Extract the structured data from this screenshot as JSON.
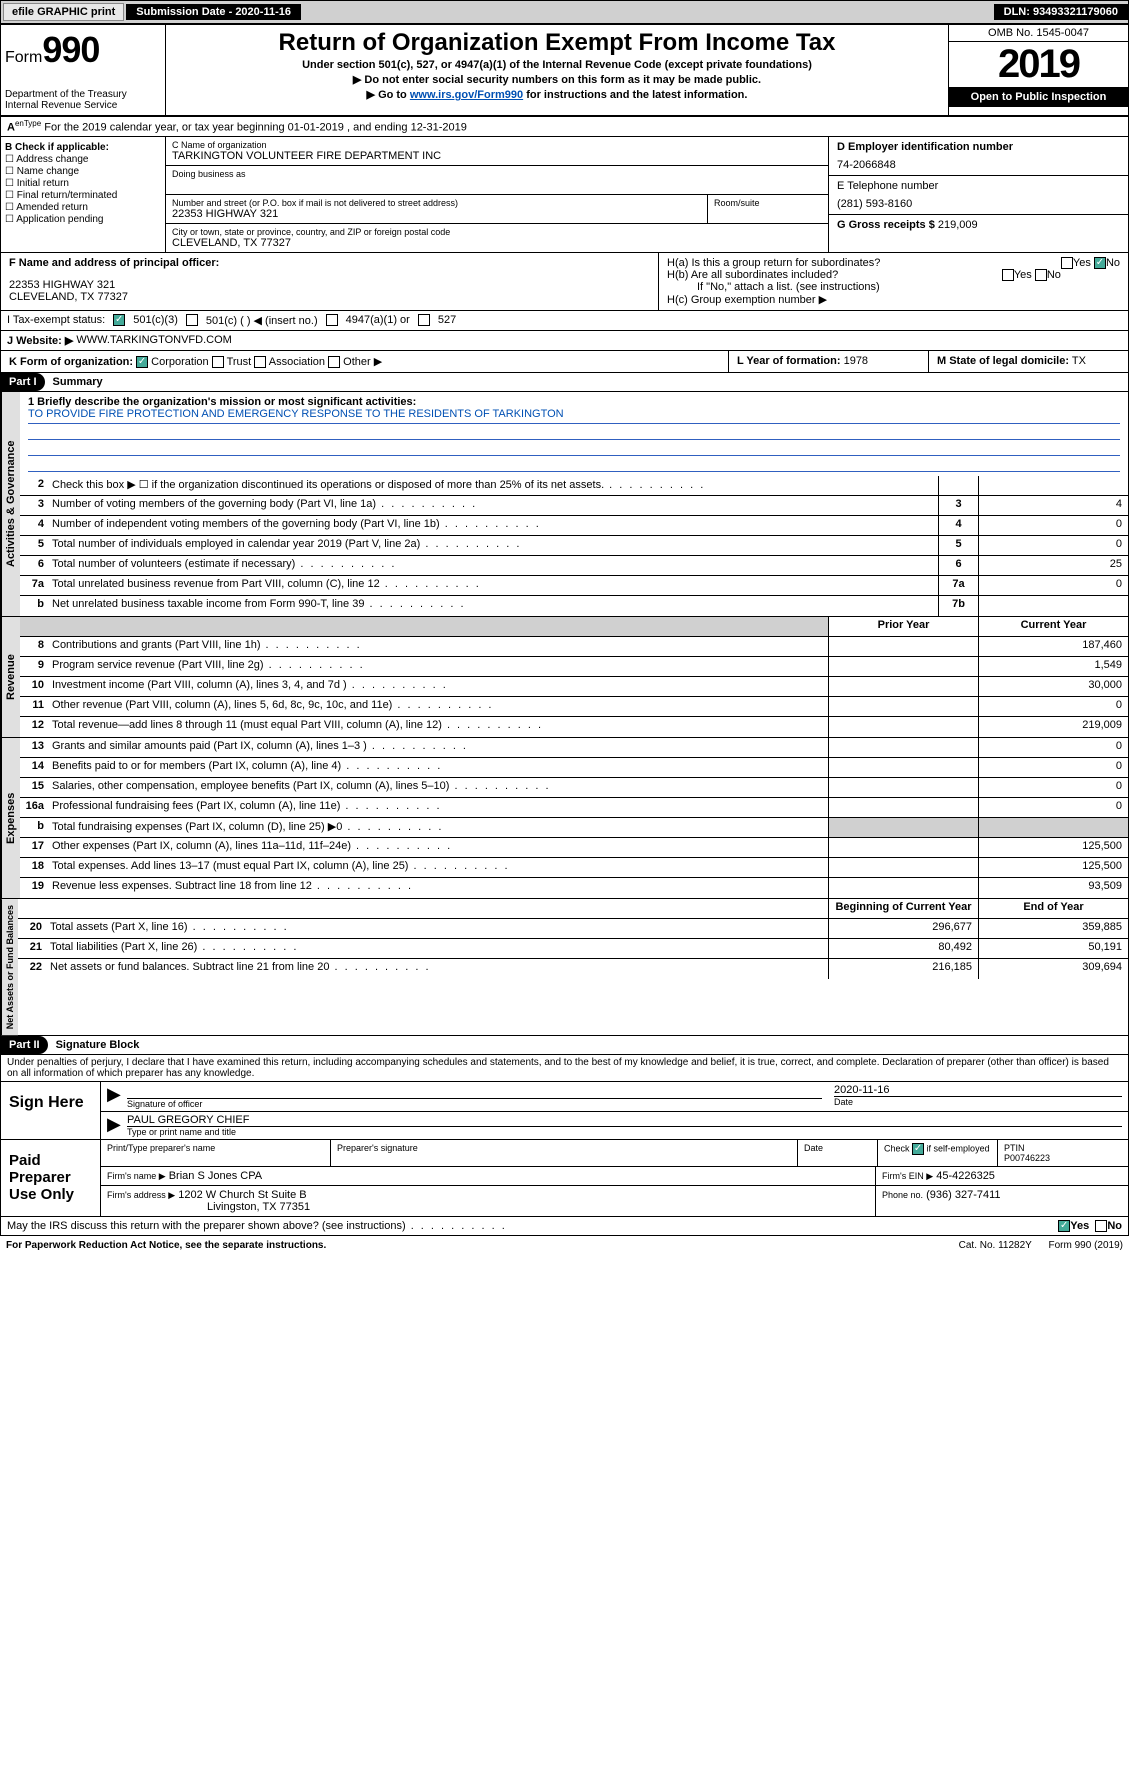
{
  "topbar": {
    "efile": "efile GRAPHIC print",
    "sub_label": "Submission Date - 2020-11-16",
    "dln": "DLN: 93493321179060"
  },
  "header": {
    "form_prefix": "Form",
    "form_num": "990",
    "dept": "Department of the Treasury\nInternal Revenue Service",
    "title": "Return of Organization Exempt From Income Tax",
    "sub1": "Under section 501(c), 527, or 4947(a)(1) of the Internal Revenue Code (except private foundations)",
    "sub2": "Do not enter social security numbers on this form as it may be made public.",
    "sub3_pre": "Go to ",
    "sub3_link": "www.irs.gov/Form990",
    "sub3_post": " for instructions and the latest information.",
    "omb": "OMB No. 1545-0047",
    "year": "2019",
    "open": "Open to Public Inspection"
  },
  "section_a": "For the 2019 calendar year, or tax year beginning 01-01-2019   , and ending 12-31-2019",
  "box_b": {
    "hdr": "B Check if applicable:",
    "items": [
      "Address change",
      "Name change",
      "Initial return",
      "Final return/terminated",
      "Amended return",
      "Application pending"
    ]
  },
  "box_c": {
    "name_label": "C Name of organization",
    "name": "TARKINGTON VOLUNTEER FIRE DEPARTMENT INC",
    "dba_label": "Doing business as",
    "addr_label": "Number and street (or P.O. box if mail is not delivered to street address)",
    "room_label": "Room/suite",
    "addr": "22353 HIGHWAY 321",
    "city_label": "City or town, state or province, country, and ZIP or foreign postal code",
    "city": "CLEVELAND, TX  77327"
  },
  "box_d": {
    "label": "D Employer identification number",
    "val": "74-2066848"
  },
  "box_e": {
    "label": "E Telephone number",
    "val": "(281) 593-8160"
  },
  "box_g": {
    "label": "G Gross receipts $",
    "val": "219,009"
  },
  "box_f": {
    "label": "F  Name and address of principal officer:",
    "addr1": "22353 HIGHWAY 321",
    "addr2": "CLEVELAND, TX  77327"
  },
  "box_h": {
    "ha": "H(a)  Is this a group return for subordinates?",
    "hb": "H(b)  Are all subordinates included?",
    "hnote": "If \"No,\" attach a list. (see instructions)",
    "hc": "H(c)  Group exemption number ▶"
  },
  "row_i": {
    "label": "I   Tax-exempt status:",
    "opts": [
      "501(c)(3)",
      "501(c) (  ) ◀ (insert no.)",
      "4947(a)(1) or",
      "527"
    ]
  },
  "row_j": {
    "label": "J   Website: ▶",
    "val": "WWW.TARKINGTONVFD.COM"
  },
  "row_k": {
    "k": "K Form of organization:",
    "opts": [
      "Corporation",
      "Trust",
      "Association",
      "Other ▶"
    ],
    "l_label": "L Year of formation:",
    "l_val": "1978",
    "m_label": "M State of legal domicile:",
    "m_val": "TX"
  },
  "part1": {
    "hdr": "Part I",
    "title": "Summary"
  },
  "mission": {
    "q": "1  Briefly describe the organization's mission or most significant activities:",
    "a": "TO PROVIDE FIRE PROTECTION AND EMERGENCY RESPONSE TO THE RESIDENTS OF TARKINGTON"
  },
  "gov_rows": [
    {
      "n": "2",
      "d": "Check this box ▶ ☐  if the organization discontinued its operations or disposed of more than 25% of its net assets.",
      "k": "",
      "v": ""
    },
    {
      "n": "3",
      "d": "Number of voting members of the governing body (Part VI, line 1a)",
      "k": "3",
      "v": "4"
    },
    {
      "n": "4",
      "d": "Number of independent voting members of the governing body (Part VI, line 1b)",
      "k": "4",
      "v": "0"
    },
    {
      "n": "5",
      "d": "Total number of individuals employed in calendar year 2019 (Part V, line 2a)",
      "k": "5",
      "v": "0"
    },
    {
      "n": "6",
      "d": "Total number of volunteers (estimate if necessary)",
      "k": "6",
      "v": "25"
    },
    {
      "n": "7a",
      "d": "Total unrelated business revenue from Part VIII, column (C), line 12",
      "k": "7a",
      "v": "0"
    },
    {
      "n": "b",
      "d": "Net unrelated business taxable income from Form 990-T, line 39",
      "k": "7b",
      "v": ""
    }
  ],
  "rev_hdr": {
    "prior": "Prior Year",
    "curr": "Current Year"
  },
  "rev_rows": [
    {
      "n": "8",
      "d": "Contributions and grants (Part VIII, line 1h)",
      "p": "",
      "c": "187,460"
    },
    {
      "n": "9",
      "d": "Program service revenue (Part VIII, line 2g)",
      "p": "",
      "c": "1,549"
    },
    {
      "n": "10",
      "d": "Investment income (Part VIII, column (A), lines 3, 4, and 7d )",
      "p": "",
      "c": "30,000"
    },
    {
      "n": "11",
      "d": "Other revenue (Part VIII, column (A), lines 5, 6d, 8c, 9c, 10c, and 11e)",
      "p": "",
      "c": "0"
    },
    {
      "n": "12",
      "d": "Total revenue—add lines 8 through 11 (must equal Part VIII, column (A), line 12)",
      "p": "",
      "c": "219,009"
    }
  ],
  "exp_rows": [
    {
      "n": "13",
      "d": "Grants and similar amounts paid (Part IX, column (A), lines 1–3 )",
      "p": "",
      "c": "0"
    },
    {
      "n": "14",
      "d": "Benefits paid to or for members (Part IX, column (A), line 4)",
      "p": "",
      "c": "0"
    },
    {
      "n": "15",
      "d": "Salaries, other compensation, employee benefits (Part IX, column (A), lines 5–10)",
      "p": "",
      "c": "0"
    },
    {
      "n": "16a",
      "d": "Professional fundraising fees (Part IX, column (A), line 11e)",
      "p": "",
      "c": "0"
    },
    {
      "n": "b",
      "d": "Total fundraising expenses (Part IX, column (D), line 25) ▶0",
      "p": "grey",
      "c": "grey"
    },
    {
      "n": "17",
      "d": "Other expenses (Part IX, column (A), lines 11a–11d, 11f–24e)",
      "p": "",
      "c": "125,500"
    },
    {
      "n": "18",
      "d": "Total expenses. Add lines 13–17 (must equal Part IX, column (A), line 25)",
      "p": "",
      "c": "125,500"
    },
    {
      "n": "19",
      "d": "Revenue less expenses. Subtract line 18 from line 12",
      "p": "",
      "c": "93,509"
    }
  ],
  "na_hdr": {
    "beg": "Beginning of Current Year",
    "end": "End of Year"
  },
  "na_rows": [
    {
      "n": "20",
      "d": "Total assets (Part X, line 16)",
      "p": "296,677",
      "c": "359,885"
    },
    {
      "n": "21",
      "d": "Total liabilities (Part X, line 26)",
      "p": "80,492",
      "c": "50,191"
    },
    {
      "n": "22",
      "d": "Net assets or fund balances. Subtract line 21 from line 20",
      "p": "216,185",
      "c": "309,694"
    }
  ],
  "vtabs": {
    "gov": "Activities & Governance",
    "rev": "Revenue",
    "exp": "Expenses",
    "na": "Net Assets or Fund Balances"
  },
  "part2": {
    "hdr": "Part II",
    "title": "Signature Block"
  },
  "perjury": "Under penalties of perjury, I declare that I have examined this return, including accompanying schedules and statements, and to the best of my knowledge and belief, it is true, correct, and complete. Declaration of preparer (other than officer) is based on all information of which preparer has any knowledge.",
  "sign": {
    "label": "Sign Here",
    "sig_of": "Signature of officer",
    "date_label": "Date",
    "date": "2020-11-16",
    "name": "PAUL GREGORY CHIEF",
    "name_label": "Type or print name and title"
  },
  "paid": {
    "label": "Paid Preparer Use Only",
    "h1": "Print/Type preparer's name",
    "h2": "Preparer's signature",
    "h3": "Date",
    "h4_pre": "Check",
    "h4_post": "if self-employed",
    "h5": "PTIN",
    "ptin": "P00746223",
    "firm_label": "Firm's name   ▶",
    "firm": "Brian S Jones CPA",
    "ein_label": "Firm's EIN ▶",
    "ein": "45-4226325",
    "addr_label": "Firm's address ▶",
    "addr1": "1202 W Church St Suite B",
    "addr2": "Livingston, TX  77351",
    "phone_label": "Phone no.",
    "phone": "(936) 327-7411"
  },
  "discuss": "May the IRS discuss this return with the preparer shown above? (see instructions)",
  "footer": {
    "pra": "For Paperwork Reduction Act Notice, see the separate instructions.",
    "cat": "Cat. No. 11282Y",
    "form": "Form 990 (2019)"
  },
  "yn": {
    "yes": "Yes",
    "no": "No"
  }
}
